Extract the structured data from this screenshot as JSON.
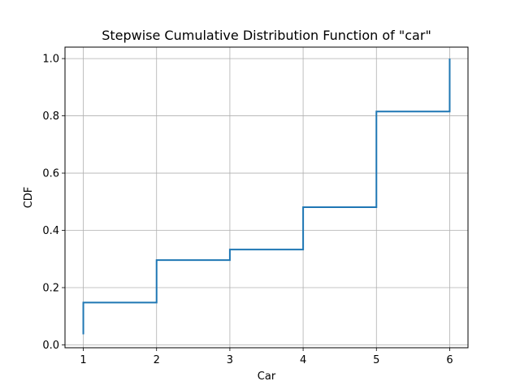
{
  "chart_data": {
    "type": "line",
    "title": "Stepwise Cumulative Distribution Function of \"car\"",
    "xlabel": "Car",
    "ylabel": "CDF",
    "xlim": [
      0.75,
      6.25
    ],
    "ylim": [
      -0.01,
      1.04
    ],
    "xticks": [
      1,
      2,
      3,
      4,
      5,
      6
    ],
    "yticks": [
      0.0,
      0.2,
      0.4,
      0.6,
      0.8,
      1.0
    ],
    "grid": true,
    "step_where": "post",
    "series": [
      {
        "color": "#1f77b4",
        "x": [
          1,
          2,
          3,
          4,
          5,
          6
        ],
        "y": [
          0.148,
          0.296,
          0.333,
          0.481,
          0.815,
          1.0
        ]
      }
    ],
    "start_y": 0.037
  }
}
